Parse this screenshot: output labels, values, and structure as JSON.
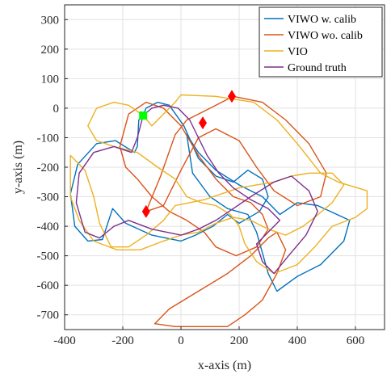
{
  "chart_data": {
    "type": "line",
    "xlabel": "x-axis (m)",
    "ylabel": "y-axis (m)",
    "xlim": [
      -400,
      700
    ],
    "ylim": [
      -750,
      350
    ],
    "xticks": [
      -400,
      -200,
      0,
      200,
      400,
      600
    ],
    "yticks": [
      -700,
      -600,
      -500,
      -400,
      -300,
      -200,
      -100,
      0,
      100,
      200,
      300
    ],
    "xtick_labels": [
      "-400",
      "-200",
      "0",
      "200",
      "400",
      "600"
    ],
    "ytick_labels": [
      "-700",
      "-600",
      "-500",
      "-400",
      "-300",
      "-200",
      "-100",
      "0",
      "100",
      "200",
      "300"
    ],
    "grid": true,
    "legend_position": "top-right",
    "series": [
      {
        "name": "VIWO w. calib",
        "color": "#0072BD",
        "points": [
          [
            -130,
            -25
          ],
          [
            -145,
            -40
          ],
          [
            -150,
            -130
          ],
          [
            -160,
            -150
          ],
          [
            -225,
            -110
          ],
          [
            -290,
            -120
          ],
          [
            -355,
            -190
          ],
          [
            -380,
            -290
          ],
          [
            -365,
            -400
          ],
          [
            -320,
            -450
          ],
          [
            -270,
            -445
          ],
          [
            -235,
            -340
          ],
          [
            -190,
            -390
          ],
          [
            -100,
            -430
          ],
          [
            0,
            -450
          ],
          [
            50,
            -430
          ],
          [
            110,
            -400
          ],
          [
            160,
            -360
          ],
          [
            200,
            -390
          ],
          [
            270,
            -350
          ],
          [
            300,
            -300
          ],
          [
            280,
            -240
          ],
          [
            230,
            -210
          ],
          [
            180,
            -250
          ],
          [
            120,
            -230
          ],
          [
            60,
            -170
          ],
          [
            10,
            -60
          ],
          [
            -40,
            10
          ],
          [
            -80,
            20
          ],
          [
            -120,
            0
          ],
          [
            -130,
            -25
          ]
        ]
      },
      {
        "name": "VIWO w. calib",
        "color": "#0072BD",
        "points": [
          [
            20,
            -90
          ],
          [
            60,
            -150
          ],
          [
            120,
            -210
          ],
          [
            200,
            -260
          ],
          [
            280,
            -300
          ],
          [
            340,
            -360
          ],
          [
            400,
            -320
          ],
          [
            470,
            -330
          ],
          [
            580,
            -380
          ],
          [
            560,
            -450
          ],
          [
            480,
            -530
          ],
          [
            400,
            -570
          ],
          [
            330,
            -620
          ],
          [
            300,
            -560
          ],
          [
            260,
            -420
          ],
          [
            230,
            -360
          ],
          [
            160,
            -340
          ],
          [
            100,
            -300
          ],
          [
            40,
            -220
          ],
          [
            20,
            -90
          ]
        ]
      },
      {
        "name": "VIWO wo. calib",
        "color": "#D95319",
        "points": [
          [
            -120,
            -350
          ],
          [
            -70,
            -230
          ],
          [
            -20,
            -90
          ],
          [
            20,
            -40
          ],
          [
            80,
            -10
          ],
          [
            180,
            40
          ],
          [
            280,
            20
          ],
          [
            360,
            -40
          ],
          [
            440,
            -120
          ],
          [
            500,
            -220
          ],
          [
            480,
            -300
          ],
          [
            400,
            -330
          ],
          [
            320,
            -280
          ],
          [
            260,
            -200
          ],
          [
            200,
            -110
          ],
          [
            120,
            -70
          ],
          [
            60,
            -100
          ],
          [
            0,
            -210
          ],
          [
            -60,
            -330
          ],
          [
            -120,
            -350
          ]
        ]
      },
      {
        "name": "VIWO wo. calib",
        "color": "#D95319",
        "points": [
          [
            -210,
            -130
          ],
          [
            -180,
            -20
          ],
          [
            -120,
            20
          ],
          [
            -60,
            0
          ],
          [
            0,
            -60
          ],
          [
            60,
            -160
          ],
          [
            120,
            -240
          ],
          [
            180,
            -300
          ],
          [
            240,
            -320
          ],
          [
            280,
            -360
          ],
          [
            300,
            -410
          ],
          [
            260,
            -470
          ],
          [
            190,
            -500
          ],
          [
            120,
            -470
          ],
          [
            80,
            -420
          ],
          [
            20,
            -380
          ],
          [
            -40,
            -350
          ],
          [
            -100,
            -300
          ],
          [
            -150,
            -240
          ],
          [
            -190,
            -200
          ],
          [
            -210,
            -130
          ]
        ]
      },
      {
        "name": "VIWO wo. calib",
        "color": "#D95319",
        "points": [
          [
            -90,
            -730
          ],
          [
            -40,
            -680
          ],
          [
            60,
            -620
          ],
          [
            160,
            -560
          ],
          [
            240,
            -500
          ],
          [
            300,
            -440
          ],
          [
            330,
            -420
          ],
          [
            360,
            -480
          ],
          [
            330,
            -560
          ],
          [
            280,
            -650
          ],
          [
            220,
            -700
          ],
          [
            160,
            -740
          ],
          [
            60,
            -740
          ],
          [
            -20,
            -740
          ],
          [
            -90,
            -730
          ]
        ]
      },
      {
        "name": "VIO",
        "color": "#EDB120",
        "points": [
          [
            -290,
            0
          ],
          [
            -230,
            20
          ],
          [
            -180,
            10
          ],
          [
            -130,
            -25
          ],
          [
            -100,
            -60
          ],
          [
            -20,
            20
          ],
          [
            0,
            45
          ],
          [
            120,
            40
          ],
          [
            250,
            20
          ],
          [
            330,
            -40
          ],
          [
            400,
            -120
          ],
          [
            480,
            -220
          ],
          [
            540,
            -250
          ],
          [
            640,
            -280
          ],
          [
            640,
            -340
          ],
          [
            600,
            -370
          ],
          [
            520,
            -400
          ],
          [
            460,
            -470
          ],
          [
            400,
            -530
          ],
          [
            320,
            -560
          ],
          [
            260,
            -520
          ],
          [
            220,
            -460
          ],
          [
            200,
            -400
          ],
          [
            170,
            -360
          ],
          [
            120,
            -330
          ],
          [
            70,
            -320
          ],
          [
            20,
            -300
          ],
          [
            -20,
            -240
          ],
          [
            -80,
            -200
          ],
          [
            -150,
            -150
          ],
          [
            -230,
            -130
          ],
          [
            -290,
            -110
          ],
          [
            -320,
            -60
          ],
          [
            -290,
            0
          ]
        ]
      },
      {
        "name": "VIO",
        "color": "#EDB120",
        "points": [
          [
            -380,
            -160
          ],
          [
            -330,
            -210
          ],
          [
            -300,
            -300
          ],
          [
            -280,
            -390
          ],
          [
            -240,
            -470
          ],
          [
            -180,
            -470
          ],
          [
            -120,
            -430
          ],
          [
            -60,
            -380
          ],
          [
            -20,
            -330
          ],
          [
            30,
            -320
          ],
          [
            80,
            -310
          ],
          [
            140,
            -290
          ],
          [
            200,
            -270
          ],
          [
            260,
            -260
          ],
          [
            320,
            -250
          ],
          [
            380,
            -230
          ],
          [
            440,
            -220
          ],
          [
            520,
            -220
          ],
          [
            560,
            -260
          ],
          [
            520,
            -320
          ],
          [
            460,
            -370
          ],
          [
            420,
            -400
          ],
          [
            360,
            -430
          ],
          [
            300,
            -410
          ],
          [
            240,
            -380
          ],
          [
            180,
            -370
          ],
          [
            120,
            -390
          ],
          [
            60,
            -420
          ],
          [
            0,
            -430
          ],
          [
            -60,
            -450
          ],
          [
            -140,
            -480
          ],
          [
            -220,
            -480
          ],
          [
            -300,
            -450
          ],
          [
            -350,
            -380
          ],
          [
            -380,
            -300
          ],
          [
            -380,
            -160
          ]
        ]
      },
      {
        "name": "Ground truth",
        "color": "#7E2F8E",
        "points": [
          [
            -130,
            -25
          ],
          [
            -150,
            -100
          ],
          [
            -170,
            -150
          ],
          [
            -230,
            -130
          ],
          [
            -300,
            -150
          ],
          [
            -350,
            -220
          ],
          [
            -360,
            -320
          ],
          [
            -330,
            -420
          ],
          [
            -280,
            -440
          ],
          [
            -230,
            -400
          ],
          [
            -180,
            -380
          ],
          [
            -100,
            -410
          ],
          [
            0,
            -430
          ],
          [
            60,
            -410
          ],
          [
            120,
            -380
          ],
          [
            180,
            -340
          ],
          [
            240,
            -300
          ],
          [
            320,
            -250
          ],
          [
            380,
            -230
          ],
          [
            440,
            -280
          ],
          [
            470,
            -350
          ],
          [
            430,
            -430
          ],
          [
            370,
            -500
          ],
          [
            320,
            -560
          ],
          [
            280,
            -520
          ],
          [
            260,
            -460
          ],
          [
            300,
            -420
          ],
          [
            340,
            -380
          ],
          [
            300,
            -340
          ],
          [
            240,
            -310
          ],
          [
            180,
            -270
          ],
          [
            130,
            -220
          ],
          [
            90,
            -160
          ],
          [
            60,
            -100
          ],
          [
            30,
            -40
          ],
          [
            -10,
            0
          ],
          [
            -60,
            10
          ],
          [
            -100,
            0
          ],
          [
            -130,
            -25
          ]
        ]
      }
    ],
    "markers": [
      {
        "kind": "start",
        "color": "#00FF00",
        "shape": "square",
        "x": -130,
        "y": -25
      },
      {
        "kind": "event",
        "color": "#FF0000",
        "shape": "diamond",
        "x": 175,
        "y": 40
      },
      {
        "kind": "event",
        "color": "#FF0000",
        "shape": "diamond",
        "x": 75,
        "y": -50
      },
      {
        "kind": "event",
        "color": "#FF0000",
        "shape": "diamond",
        "x": -120,
        "y": -350
      }
    ]
  }
}
